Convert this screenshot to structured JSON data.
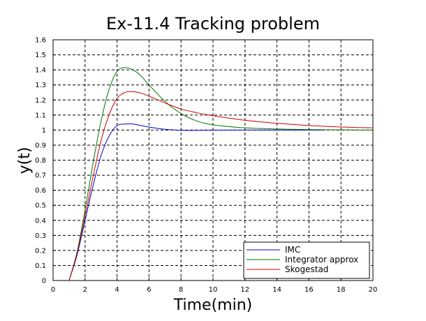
{
  "chart_data": {
    "type": "line",
    "title": "Ex-11.4 Tracking problem",
    "xlabel": "Time(min)",
    "ylabel": "y(t)",
    "xlim": [
      0,
      20
    ],
    "ylim": [
      0,
      1.6
    ],
    "grid": true,
    "legend_position": "bottom-right",
    "x_ticks": [
      "0",
      "2",
      "4",
      "6",
      "8",
      "10",
      "12",
      "14",
      "16",
      "18",
      "20"
    ],
    "y_ticks": [
      "0",
      "0.1",
      "0.2",
      "0.3",
      "0.4",
      "0.5",
      "0.6",
      "0.7",
      "0.8",
      "0.9",
      "1",
      "1.1",
      "1.2",
      "1.3",
      "1.4",
      "1.5",
      "1.6"
    ],
    "series": [
      {
        "name": "IMC",
        "color": "#0000cc",
        "x": [
          1.0,
          1.5,
          2.0,
          2.5,
          3.0,
          3.5,
          4.0,
          4.5,
          5.0,
          5.5,
          6.0,
          7.0,
          8.0,
          9.0,
          10.0,
          12.0,
          14.0,
          17.0
        ],
        "y": [
          0.0,
          0.17,
          0.4,
          0.63,
          0.83,
          0.96,
          1.03,
          1.04,
          1.04,
          1.03,
          1.02,
          1.005,
          0.998,
          0.998,
          0.999,
          1.0,
          1.0,
          1.0
        ]
      },
      {
        "name": "Integrator approx",
        "color": "#007700",
        "x": [
          1.0,
          1.5,
          2.0,
          2.5,
          3.0,
          3.5,
          4.0,
          4.5,
          5.0,
          5.5,
          6.0,
          7.0,
          8.0,
          9.0,
          10.0,
          12.0,
          14.0,
          16.0,
          18.0,
          20.0
        ],
        "y": [
          0.0,
          0.19,
          0.47,
          0.78,
          1.06,
          1.27,
          1.39,
          1.415,
          1.4,
          1.36,
          1.3,
          1.19,
          1.11,
          1.06,
          1.035,
          1.015,
          1.007,
          1.003,
          1.001,
          1.0
        ]
      },
      {
        "name": "Skogestad",
        "color": "#cc0000",
        "x": [
          1.0,
          1.5,
          2.0,
          2.5,
          3.0,
          3.5,
          4.0,
          4.5,
          5.0,
          5.5,
          6.0,
          7.0,
          8.0,
          9.0,
          10.0,
          12.0,
          14.0,
          16.0,
          18.0,
          20.0
        ],
        "y": [
          0.0,
          0.18,
          0.43,
          0.69,
          0.93,
          1.1,
          1.21,
          1.25,
          1.255,
          1.245,
          1.225,
          1.18,
          1.14,
          1.115,
          1.095,
          1.065,
          1.045,
          1.03,
          1.02,
          1.015
        ]
      }
    ]
  }
}
